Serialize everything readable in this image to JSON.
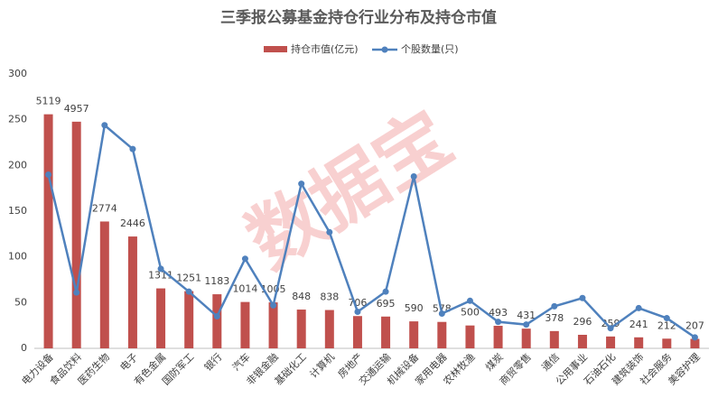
{
  "chart_data": {
    "type": "bar_line",
    "title": "三季报公募基金持仓行业分布及持仓市值",
    "watermark": "数据宝",
    "categories": [
      "电力设备",
      "食品饮料",
      "医药生物",
      "电子",
      "有色金属",
      "国防军工",
      "银行",
      "汽车",
      "非银金融",
      "基础化工",
      "计算机",
      "房地产",
      "交通运输",
      "机械设备",
      "家用电器",
      "农林牧渔",
      "煤炭",
      "商贸零售",
      "通信",
      "公用事业",
      "石油石化",
      "建筑装饰",
      "社会服务",
      "美容护理"
    ],
    "series": [
      {
        "name": "持仓市值(亿元)",
        "type": "bar",
        "axis": "y2",
        "color": "#c0504d",
        "values": [
          5119,
          4957,
          2774,
          2446,
          1311,
          1251,
          1183,
          1014,
          1005,
          848,
          838,
          706,
          695,
          590,
          578,
          500,
          493,
          431,
          378,
          296,
          259,
          241,
          212,
          207
        ]
      },
      {
        "name": "个股数量(只)",
        "type": "line",
        "color": "#4f81bd",
        "values": [
          190,
          61,
          244,
          218,
          87,
          62,
          35,
          98,
          47,
          180,
          127,
          40,
          62,
          188,
          38,
          52,
          29,
          26,
          46,
          55,
          22,
          44,
          33,
          12
        ]
      }
    ],
    "ylim": [
      0,
      300
    ],
    "yticks": [
      0,
      50,
      100,
      150,
      200,
      250,
      300
    ],
    "y2lim": [
      0,
      6000
    ],
    "legend": "top"
  }
}
